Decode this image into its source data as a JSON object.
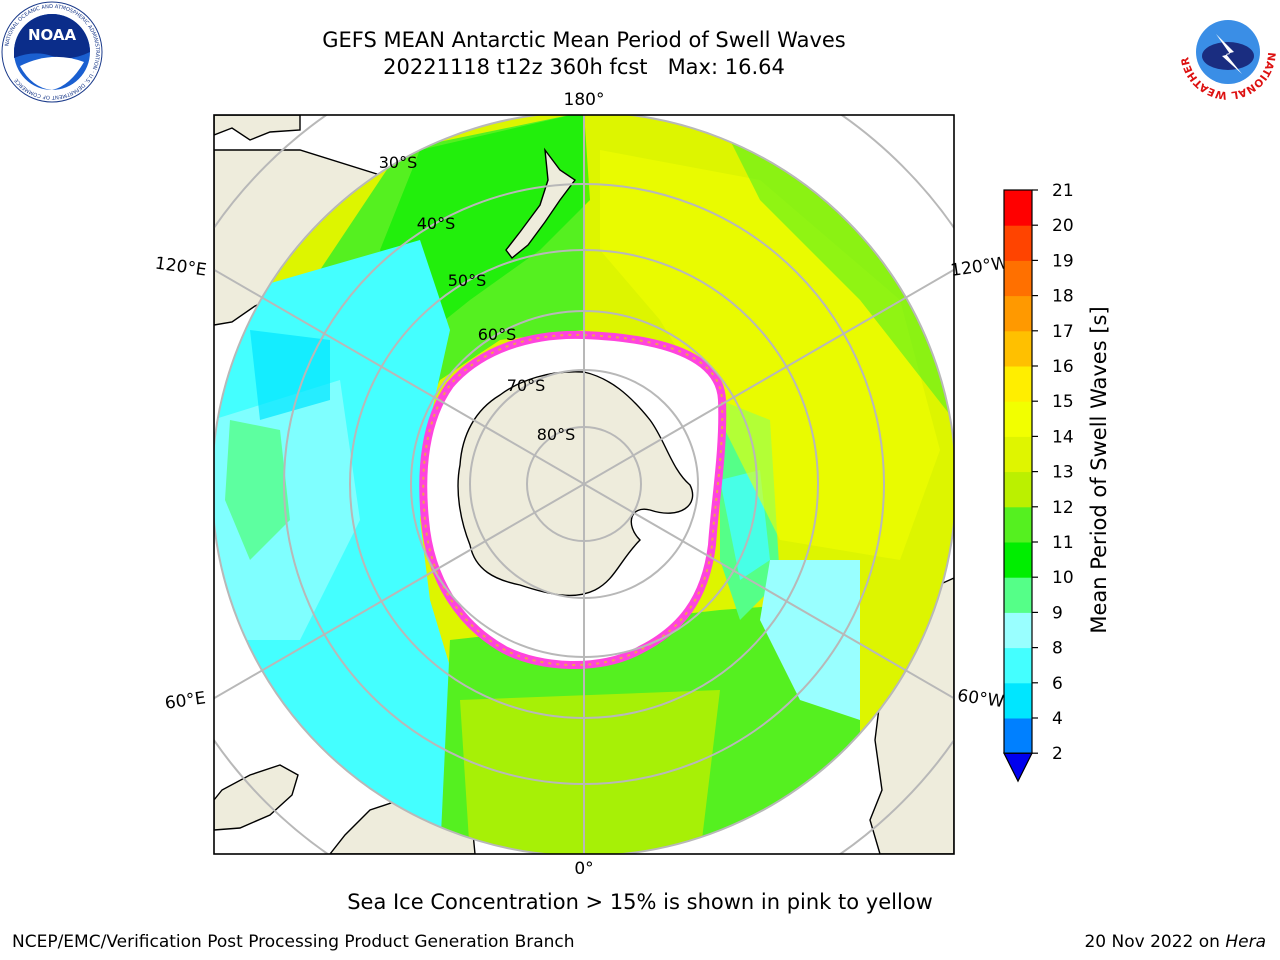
{
  "title": {
    "line1": "GEFS MEAN Antarctic Mean Period of Swell Waves",
    "line2": "20221118 t12z 360h fcst   Max: 16.64"
  },
  "logos": {
    "left": "NOAA",
    "left_ring_text": "NATIONAL OCEANIC AND ATMOSPHERIC ADMINISTRATION · U.S. DEPARTMENT OF COMMERCE",
    "right_ring_text": "NATIONAL WEATHER SERVICE"
  },
  "map": {
    "projection": "south-polar-stereographic",
    "longitude_labels": [
      "180°",
      "120°E",
      "120°W",
      "60°E",
      "60°W",
      "0°"
    ],
    "latitude_labels": [
      "30°S",
      "40°S",
      "50°S",
      "60°S",
      "70°S",
      "80°S"
    ],
    "colors": {
      "land": "#eeecdc",
      "ice_free_white": "#ffffff",
      "sea_ice_pink": "#ff44dd",
      "sea_ice_orange": "#f0a050",
      "grid": "#b8b8b8"
    }
  },
  "colorbar": {
    "label": "Mean Period of Swell Waves [s]",
    "ticks": [
      "2",
      "4",
      "6",
      "8",
      "9",
      "10",
      "11",
      "12",
      "13",
      "14",
      "15",
      "16",
      "17",
      "18",
      "19",
      "20",
      "21"
    ],
    "bins": [
      {
        "from": 2,
        "to": 4,
        "color": "#0080ff"
      },
      {
        "from": 4,
        "to": 6,
        "color": "#00e6ff"
      },
      {
        "from": 6,
        "to": 8,
        "color": "#44ffff"
      },
      {
        "from": 8,
        "to": 9,
        "color": "#99ffff"
      },
      {
        "from": 9,
        "to": 10,
        "color": "#55ff88"
      },
      {
        "from": 10,
        "to": 11,
        "color": "#00ee00"
      },
      {
        "from": 11,
        "to": 12,
        "color": "#55f020"
      },
      {
        "from": 12,
        "to": 13,
        "color": "#bbf000"
      },
      {
        "from": 13,
        "to": 14,
        "color": "#dff500"
      },
      {
        "from": 14,
        "to": 15,
        "color": "#f2ff00"
      },
      {
        "from": 15,
        "to": 16,
        "color": "#ffee00"
      },
      {
        "from": 16,
        "to": 17,
        "color": "#ffc000"
      },
      {
        "from": 17,
        "to": 18,
        "color": "#ff9900"
      },
      {
        "from": 18,
        "to": 19,
        "color": "#ff7000"
      },
      {
        "from": 19,
        "to": 20,
        "color": "#ff4400"
      },
      {
        "from": 20,
        "to": 21,
        "color": "#ff0000"
      }
    ],
    "under_color": "#0000ee"
  },
  "seaice_note": "Sea Ice Concentration > 15% is shown in pink to yellow",
  "footer": {
    "left": "NCEP/EMC/Verification Post Processing Product Generation Branch",
    "date": "20 Nov 2022 on ",
    "host": "Hera"
  }
}
